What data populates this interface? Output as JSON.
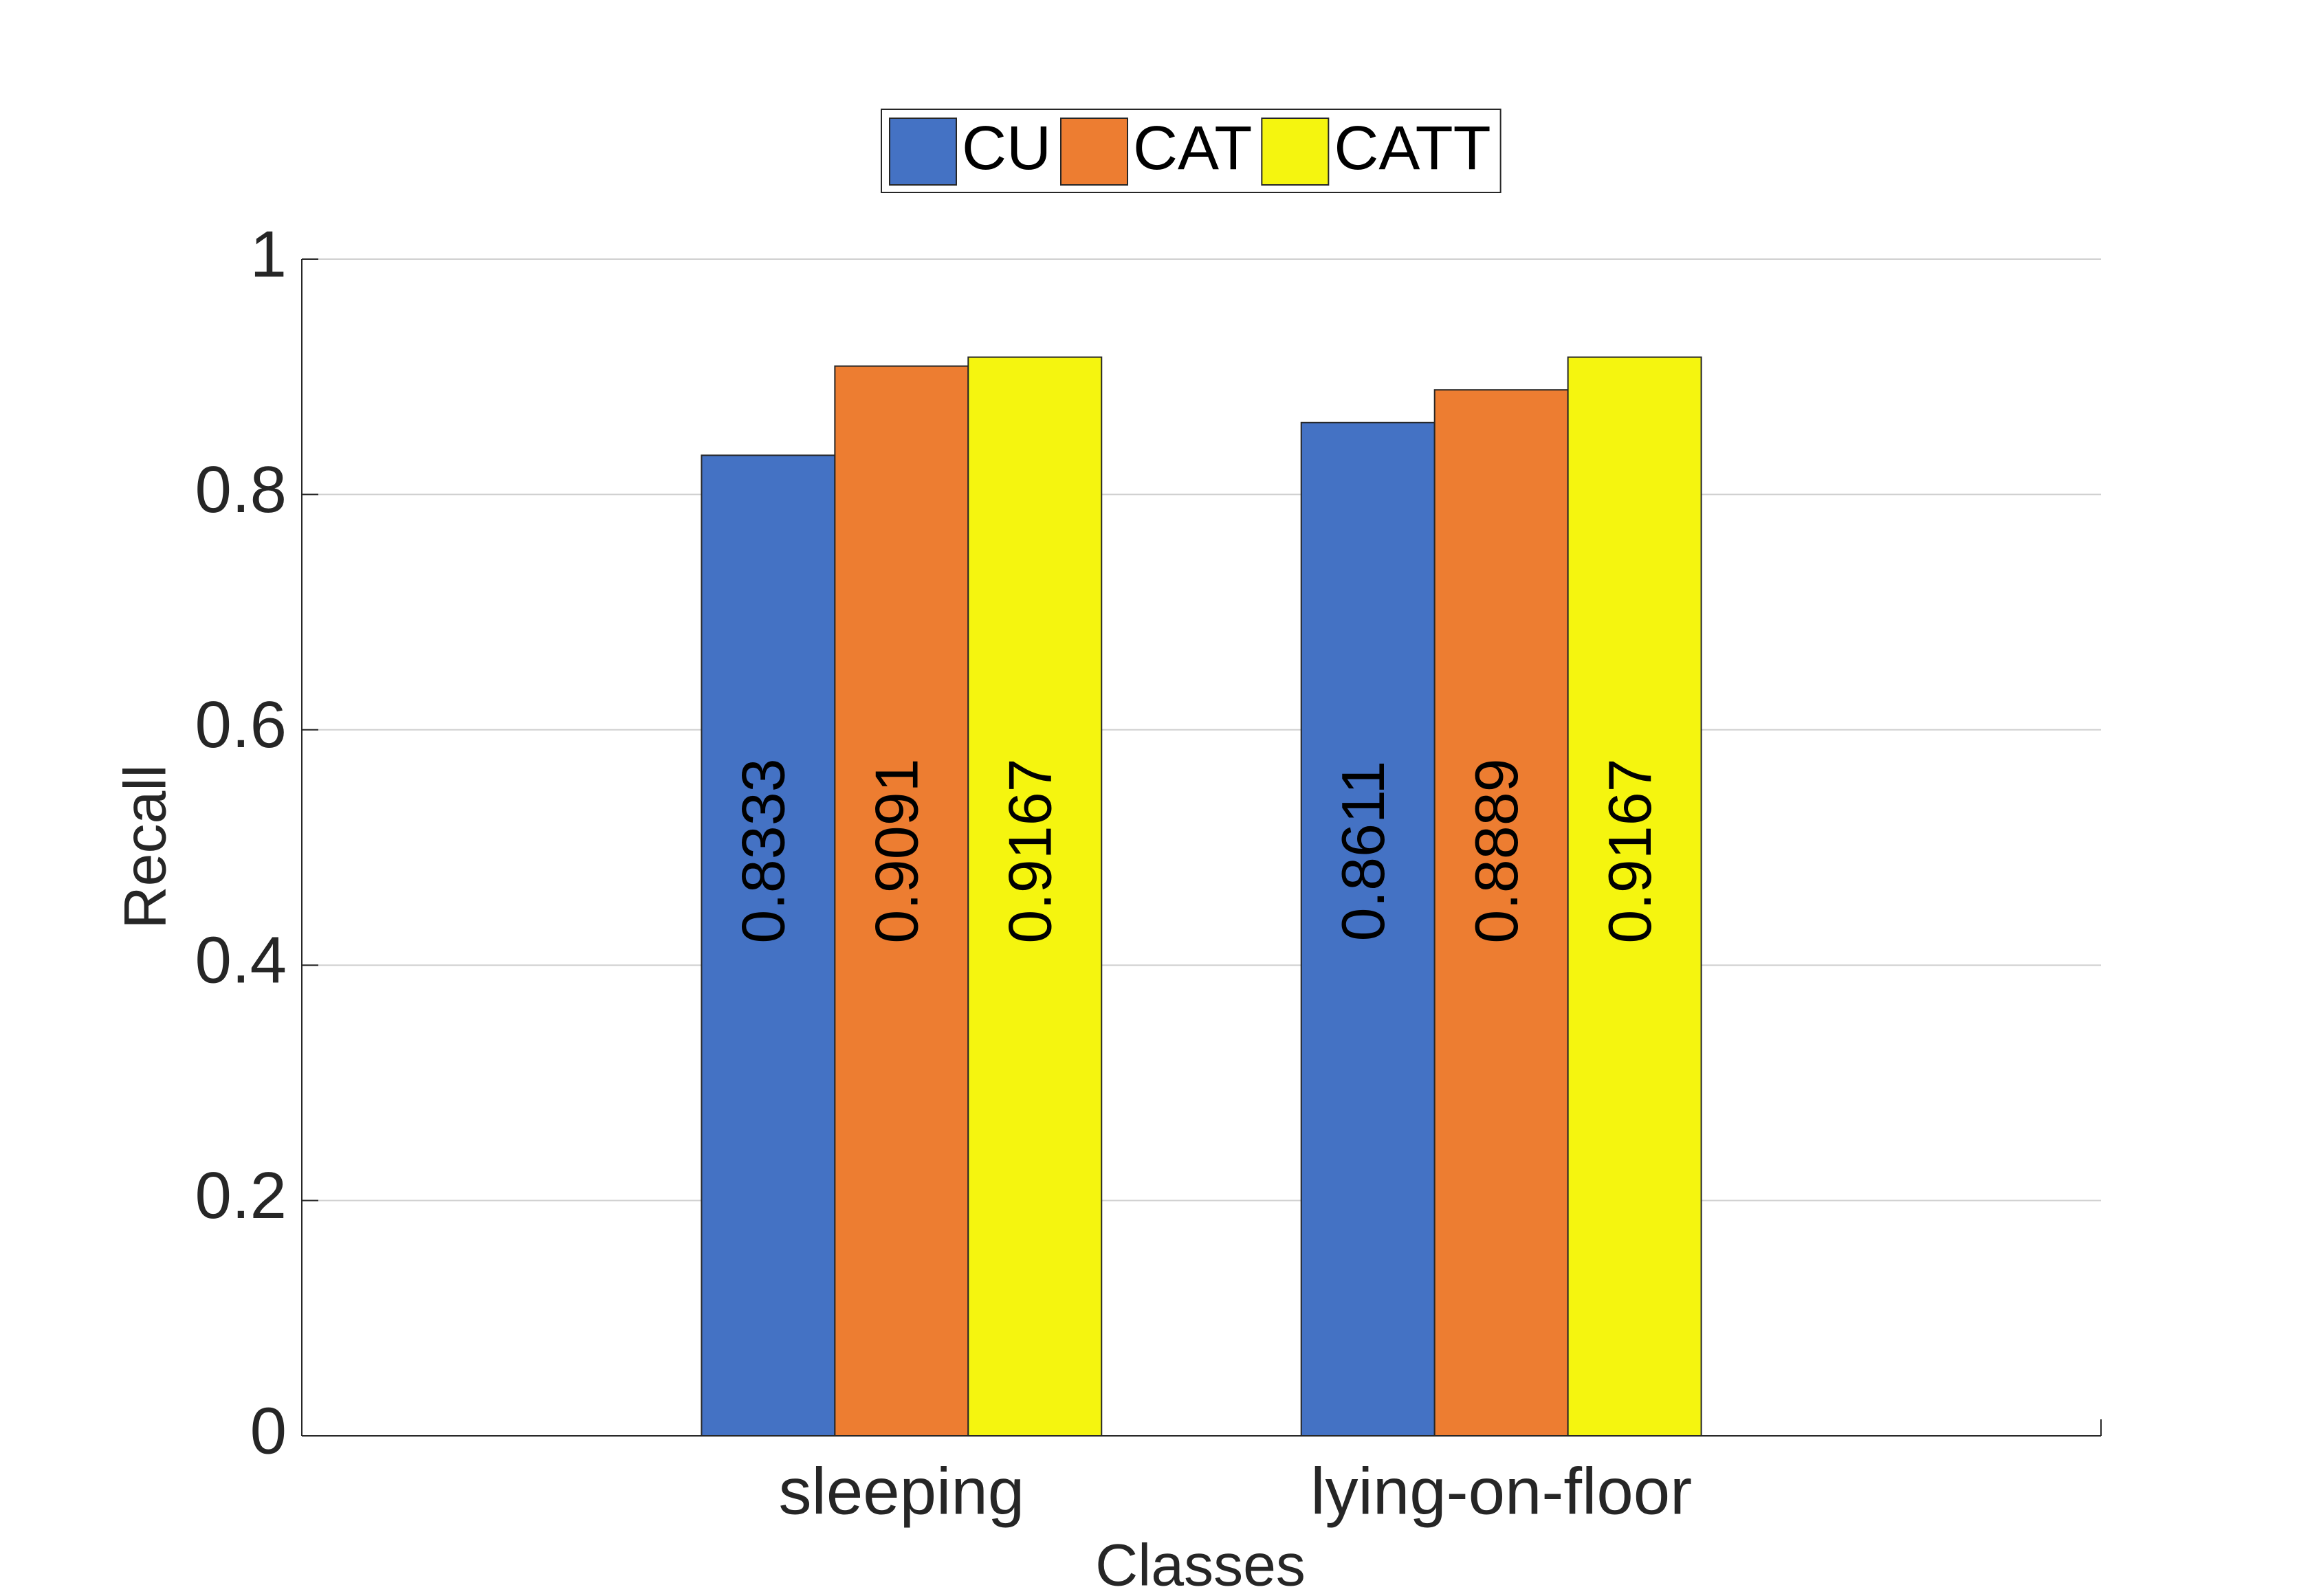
{
  "chart_data": {
    "type": "bar",
    "x_label": "Classes",
    "y_label": "Recall",
    "categories": [
      "sleeping",
      "lying-on-floor"
    ],
    "series": [
      {
        "name": "CU",
        "color": "#4472c4",
        "values": [
          0.8333,
          0.8611
        ]
      },
      {
        "name": "CAT",
        "color": "#ed7d31",
        "values": [
          0.9091,
          0.8889
        ]
      },
      {
        "name": "CATT",
        "color": "#f5f50f",
        "values": [
          0.9167,
          0.9167
        ]
      }
    ],
    "ylim": [
      0,
      1
    ],
    "yticks": [
      0,
      0.2,
      0.4,
      0.6,
      0.8,
      1
    ],
    "grid": true,
    "legend": "top"
  }
}
